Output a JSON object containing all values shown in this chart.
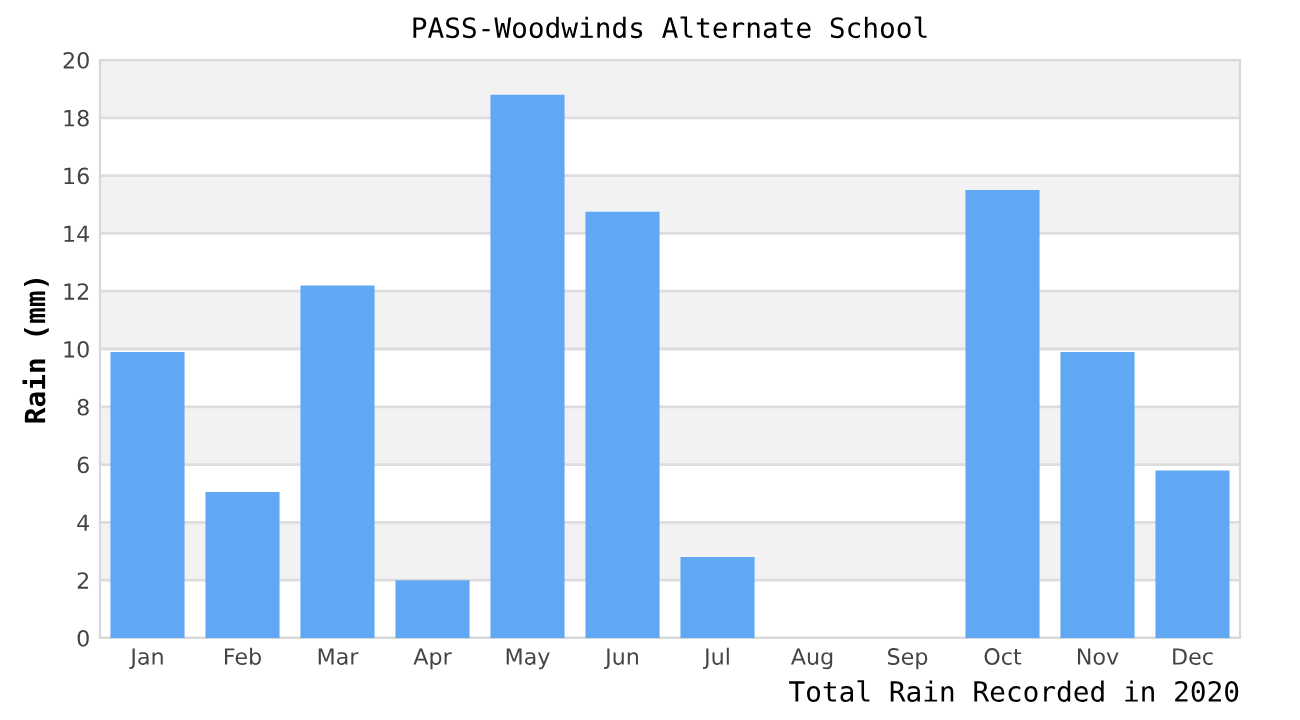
{
  "chart_data": {
    "type": "bar",
    "title": "PASS-Woodwinds Alternate School",
    "xlabel": "Total Rain Recorded in 2020",
    "ylabel": "Rain (mm)",
    "categories": [
      "Jan",
      "Feb",
      "Mar",
      "Apr",
      "May",
      "Jun",
      "Jul",
      "Aug",
      "Sep",
      "Oct",
      "Nov",
      "Dec"
    ],
    "values": [
      9.9,
      5.05,
      12.2,
      2.0,
      18.8,
      14.75,
      2.8,
      0,
      0,
      15.5,
      9.9,
      5.8
    ],
    "color": "#60a8f4",
    "ylim": [
      0,
      20
    ],
    "yticks": [
      0,
      2,
      4,
      6,
      8,
      10,
      12,
      14,
      16,
      18,
      20
    ],
    "grid": "y"
  }
}
